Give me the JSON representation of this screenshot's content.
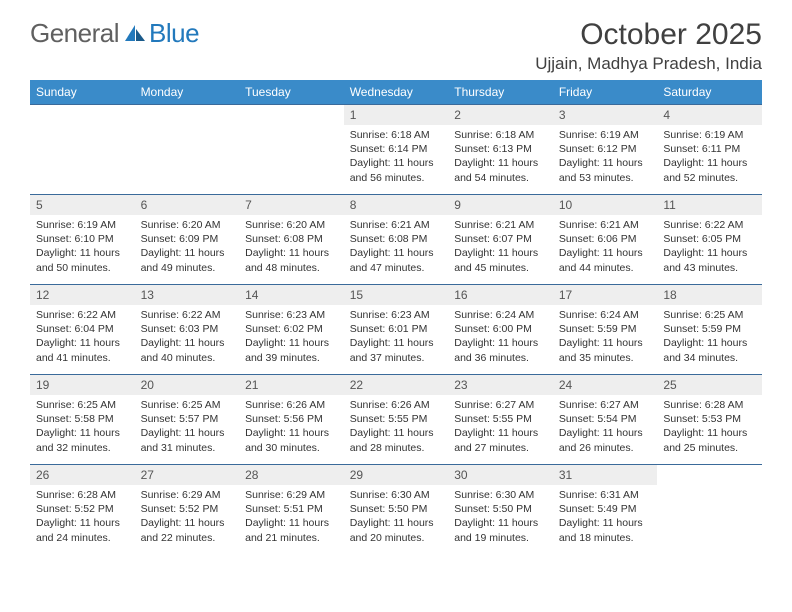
{
  "brand": {
    "part1": "General",
    "part2": "Blue"
  },
  "title": "October 2025",
  "location": "Ujjain, Madhya Pradesh, India",
  "colors": {
    "header_bg": "#3a8bc9",
    "header_fg": "#ffffff",
    "row_border": "#3a6a9a",
    "daynum_bg": "#eeeeee",
    "text": "#333333",
    "logo_gray": "#606060",
    "logo_blue": "#2279bc"
  },
  "typography": {
    "title_fontsize": 30,
    "location_fontsize": 17,
    "dayhead_fontsize": 12,
    "cell_fontsize": 10.5
  },
  "day_headers": [
    "Sunday",
    "Monday",
    "Tuesday",
    "Wednesday",
    "Thursday",
    "Friday",
    "Saturday"
  ],
  "weeks": [
    [
      {
        "n": "",
        "lines": []
      },
      {
        "n": "",
        "lines": []
      },
      {
        "n": "",
        "lines": []
      },
      {
        "n": "1",
        "lines": [
          "Sunrise: 6:18 AM",
          "Sunset: 6:14 PM",
          "Daylight: 11 hours and 56 minutes."
        ]
      },
      {
        "n": "2",
        "lines": [
          "Sunrise: 6:18 AM",
          "Sunset: 6:13 PM",
          "Daylight: 11 hours and 54 minutes."
        ]
      },
      {
        "n": "3",
        "lines": [
          "Sunrise: 6:19 AM",
          "Sunset: 6:12 PM",
          "Daylight: 11 hours and 53 minutes."
        ]
      },
      {
        "n": "4",
        "lines": [
          "Sunrise: 6:19 AM",
          "Sunset: 6:11 PM",
          "Daylight: 11 hours and 52 minutes."
        ]
      }
    ],
    [
      {
        "n": "5",
        "lines": [
          "Sunrise: 6:19 AM",
          "Sunset: 6:10 PM",
          "Daylight: 11 hours and 50 minutes."
        ]
      },
      {
        "n": "6",
        "lines": [
          "Sunrise: 6:20 AM",
          "Sunset: 6:09 PM",
          "Daylight: 11 hours and 49 minutes."
        ]
      },
      {
        "n": "7",
        "lines": [
          "Sunrise: 6:20 AM",
          "Sunset: 6:08 PM",
          "Daylight: 11 hours and 48 minutes."
        ]
      },
      {
        "n": "8",
        "lines": [
          "Sunrise: 6:21 AM",
          "Sunset: 6:08 PM",
          "Daylight: 11 hours and 47 minutes."
        ]
      },
      {
        "n": "9",
        "lines": [
          "Sunrise: 6:21 AM",
          "Sunset: 6:07 PM",
          "Daylight: 11 hours and 45 minutes."
        ]
      },
      {
        "n": "10",
        "lines": [
          "Sunrise: 6:21 AM",
          "Sunset: 6:06 PM",
          "Daylight: 11 hours and 44 minutes."
        ]
      },
      {
        "n": "11",
        "lines": [
          "Sunrise: 6:22 AM",
          "Sunset: 6:05 PM",
          "Daylight: 11 hours and 43 minutes."
        ]
      }
    ],
    [
      {
        "n": "12",
        "lines": [
          "Sunrise: 6:22 AM",
          "Sunset: 6:04 PM",
          "Daylight: 11 hours and 41 minutes."
        ]
      },
      {
        "n": "13",
        "lines": [
          "Sunrise: 6:22 AM",
          "Sunset: 6:03 PM",
          "Daylight: 11 hours and 40 minutes."
        ]
      },
      {
        "n": "14",
        "lines": [
          "Sunrise: 6:23 AM",
          "Sunset: 6:02 PM",
          "Daylight: 11 hours and 39 minutes."
        ]
      },
      {
        "n": "15",
        "lines": [
          "Sunrise: 6:23 AM",
          "Sunset: 6:01 PM",
          "Daylight: 11 hours and 37 minutes."
        ]
      },
      {
        "n": "16",
        "lines": [
          "Sunrise: 6:24 AM",
          "Sunset: 6:00 PM",
          "Daylight: 11 hours and 36 minutes."
        ]
      },
      {
        "n": "17",
        "lines": [
          "Sunrise: 6:24 AM",
          "Sunset: 5:59 PM",
          "Daylight: 11 hours and 35 minutes."
        ]
      },
      {
        "n": "18",
        "lines": [
          "Sunrise: 6:25 AM",
          "Sunset: 5:59 PM",
          "Daylight: 11 hours and 34 minutes."
        ]
      }
    ],
    [
      {
        "n": "19",
        "lines": [
          "Sunrise: 6:25 AM",
          "Sunset: 5:58 PM",
          "Daylight: 11 hours and 32 minutes."
        ]
      },
      {
        "n": "20",
        "lines": [
          "Sunrise: 6:25 AM",
          "Sunset: 5:57 PM",
          "Daylight: 11 hours and 31 minutes."
        ]
      },
      {
        "n": "21",
        "lines": [
          "Sunrise: 6:26 AM",
          "Sunset: 5:56 PM",
          "Daylight: 11 hours and 30 minutes."
        ]
      },
      {
        "n": "22",
        "lines": [
          "Sunrise: 6:26 AM",
          "Sunset: 5:55 PM",
          "Daylight: 11 hours and 28 minutes."
        ]
      },
      {
        "n": "23",
        "lines": [
          "Sunrise: 6:27 AM",
          "Sunset: 5:55 PM",
          "Daylight: 11 hours and 27 minutes."
        ]
      },
      {
        "n": "24",
        "lines": [
          "Sunrise: 6:27 AM",
          "Sunset: 5:54 PM",
          "Daylight: 11 hours and 26 minutes."
        ]
      },
      {
        "n": "25",
        "lines": [
          "Sunrise: 6:28 AM",
          "Sunset: 5:53 PM",
          "Daylight: 11 hours and 25 minutes."
        ]
      }
    ],
    [
      {
        "n": "26",
        "lines": [
          "Sunrise: 6:28 AM",
          "Sunset: 5:52 PM",
          "Daylight: 11 hours and 24 minutes."
        ]
      },
      {
        "n": "27",
        "lines": [
          "Sunrise: 6:29 AM",
          "Sunset: 5:52 PM",
          "Daylight: 11 hours and 22 minutes."
        ]
      },
      {
        "n": "28",
        "lines": [
          "Sunrise: 6:29 AM",
          "Sunset: 5:51 PM",
          "Daylight: 11 hours and 21 minutes."
        ]
      },
      {
        "n": "29",
        "lines": [
          "Sunrise: 6:30 AM",
          "Sunset: 5:50 PM",
          "Daylight: 11 hours and 20 minutes."
        ]
      },
      {
        "n": "30",
        "lines": [
          "Sunrise: 6:30 AM",
          "Sunset: 5:50 PM",
          "Daylight: 11 hours and 19 minutes."
        ]
      },
      {
        "n": "31",
        "lines": [
          "Sunrise: 6:31 AM",
          "Sunset: 5:49 PM",
          "Daylight: 11 hours and 18 minutes."
        ]
      },
      {
        "n": "",
        "lines": []
      }
    ]
  ]
}
